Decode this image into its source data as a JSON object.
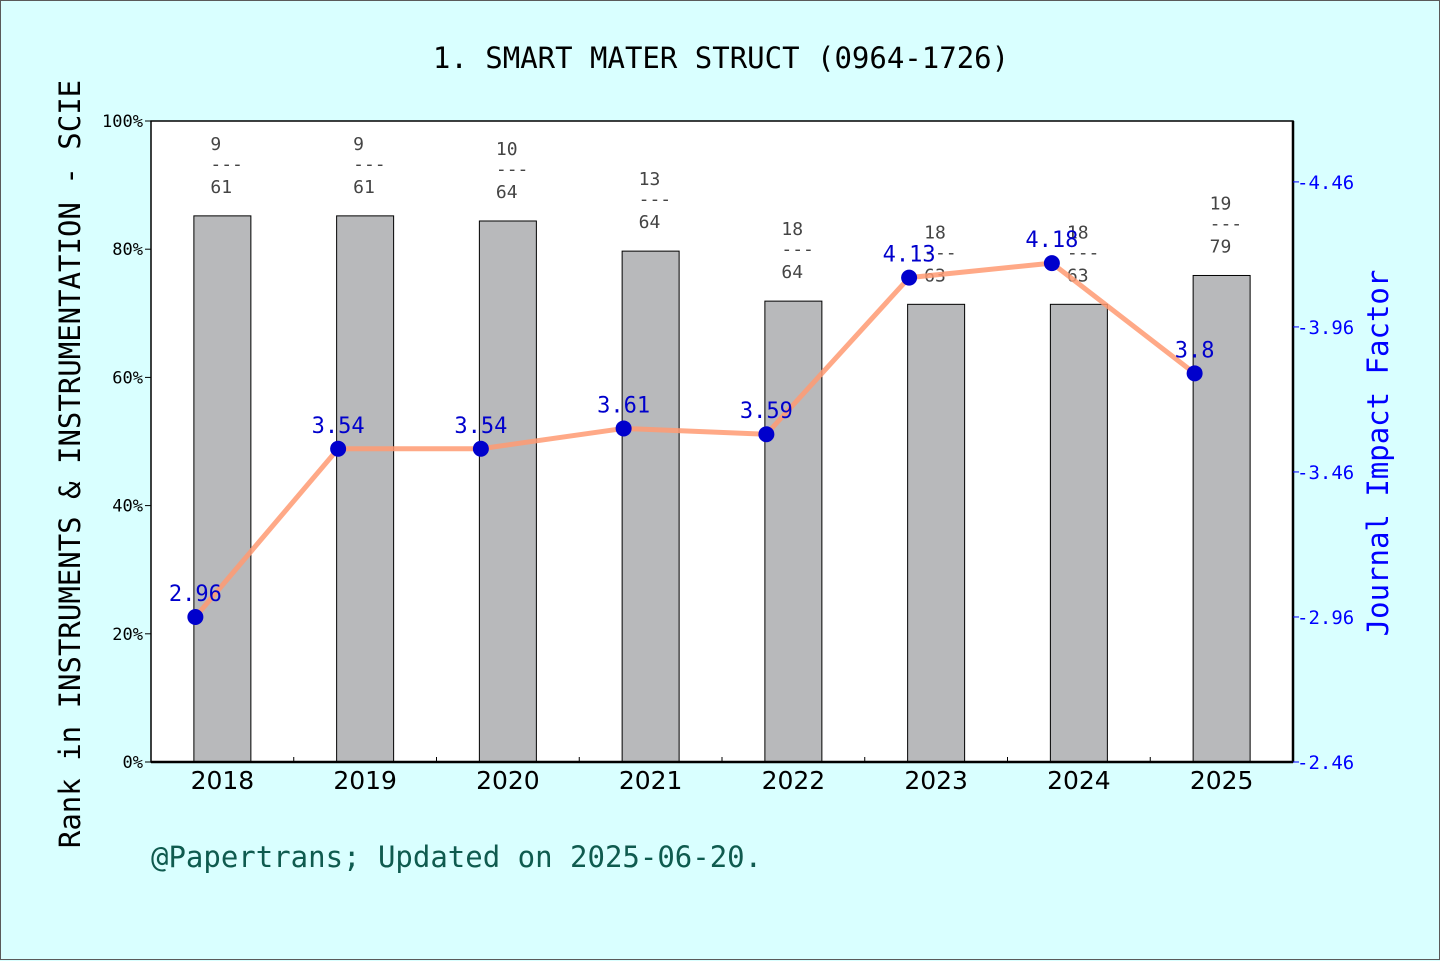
{
  "colors": {
    "background": "#d9ffff",
    "bar_fill": "#b8b9bb",
    "line": "#ff9a72",
    "marker": "#0000cc",
    "right_axis": "#0000ff",
    "footer": "#0f5b4f",
    "rank_label": "#444444"
  },
  "chart_data": {
    "type": "bar",
    "title": "1. SMART MATER STRUCT (0964-1726)",
    "ylabel": "Rank in INSTRUMENTS & INSTRUMENTATION - SCIE",
    "y2label": "Journal Impact Factor",
    "categories": [
      "2018",
      "2019",
      "2020",
      "2021",
      "2022",
      "2023",
      "2024",
      "2025"
    ],
    "ylim": [
      0,
      100
    ],
    "y_ticks": [
      "0%",
      "20%",
      "40%",
      "60%",
      "80%",
      "100%"
    ],
    "y_tick_values": [
      0,
      20,
      40,
      60,
      80,
      100
    ],
    "y2lim": [
      2.46,
      4.67
    ],
    "y2_ticks": [
      "2.46",
      "2.96",
      "3.46",
      "3.96",
      "4.46"
    ],
    "y2_tick_values": [
      2.46,
      2.96,
      3.46,
      3.96,
      4.46
    ],
    "bars": {
      "values": [
        85.2,
        85.2,
        84.4,
        79.7,
        71.9,
        71.4,
        71.4,
        75.9
      ],
      "rank": [
        "9",
        "9",
        "10",
        "13",
        "18",
        "18",
        "18",
        "19"
      ],
      "total": [
        "61",
        "61",
        "64",
        "64",
        "64",
        "63",
        "63",
        "79"
      ]
    },
    "line": {
      "values": [
        2.96,
        3.54,
        3.54,
        3.61,
        3.59,
        4.13,
        4.18,
        3.8
      ],
      "labels": [
        "2.96",
        "3.54",
        "3.54",
        "3.61",
        "3.59",
        "4.13",
        "4.18",
        "3.8"
      ]
    },
    "grid": false
  },
  "footer": "@Papertrans; Updated on 2025-06-20."
}
